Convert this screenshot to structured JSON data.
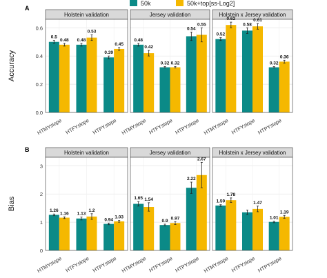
{
  "legend": {
    "position": "top",
    "entries": [
      {
        "label": "50k",
        "color": "#0b8a87"
      },
      {
        "label": "50k+top[ss-Log2]",
        "color": "#f5b800"
      }
    ]
  },
  "chart_data": [
    {
      "type": "bar",
      "panel_label": "A",
      "ylabel": "Accuracy",
      "ylim": [
        0,
        0.66
      ],
      "yticks": [
        "0.0",
        "0.2",
        "0.4",
        "0.6"
      ],
      "ytick_values": [
        0,
        0.2,
        0.4,
        0.6
      ],
      "grid": true,
      "facets": [
        {
          "title": "Holstein validation",
          "categories": [
            "HTMYslope",
            "HTFYslope",
            "HTPYslope"
          ],
          "series": [
            {
              "values": [
                0.5,
                0.48,
                0.39
              ],
              "errors": [
                0.01,
                0.01,
                0.01
              ],
              "labels": [
                "0.5",
                "0.48",
                "0.39"
              ]
            },
            {
              "values": [
                0.48,
                0.53,
                0.45
              ],
              "errors": [
                0.01,
                0.02,
                0.01
              ],
              "labels": [
                "0.48",
                "0.53",
                "0.45"
              ]
            }
          ]
        },
        {
          "title": "Jersey validation",
          "categories": [
            "HTMYslope",
            "HTFYslope",
            "HTPYslope"
          ],
          "series": [
            {
              "values": [
                0.48,
                0.32,
                0.54
              ],
              "errors": [
                0.01,
                0.005,
                0.03
              ],
              "labels": [
                "0.48",
                "0.32",
                "0.54"
              ]
            },
            {
              "values": [
                0.42,
                0.32,
                0.55
              ],
              "errors": [
                0.02,
                0.005,
                0.05
              ],
              "labels": [
                "0.42",
                "0.32",
                "0.55"
              ]
            }
          ]
        },
        {
          "title": "Holstein x Jersey validation",
          "categories": [
            "HTMYslope",
            "HTFYslope",
            "HTPYslope"
          ],
          "series": [
            {
              "values": [
                0.52,
                0.58,
                0.32
              ],
              "errors": [
                0.01,
                0.02,
                0.005
              ],
              "labels": [
                "0.52",
                "0.58",
                "0.32"
              ]
            },
            {
              "values": [
                0.62,
                0.61,
                0.36
              ],
              "errors": [
                0.02,
                0.02,
                0.01
              ],
              "labels": [
                "0.62",
                "0.61",
                "0.36"
              ]
            }
          ]
        }
      ]
    },
    {
      "type": "bar",
      "panel_label": "B",
      "ylabel": "Bias",
      "ylim": [
        0,
        3.3
      ],
      "yticks": [
        "0",
        "1",
        "2",
        "3"
      ],
      "ytick_values": [
        0,
        1,
        2,
        3
      ],
      "grid": true,
      "facets": [
        {
          "title": "Holstein validation",
          "categories": [
            "HTMYslope",
            "HTFYslope",
            "HTPYslope"
          ],
          "series": [
            {
              "values": [
                1.26,
                1.13,
                0.94
              ],
              "errors": [
                0.03,
                0.05,
                0.03
              ],
              "labels": [
                "1.26",
                "1.13",
                "0.94"
              ]
            },
            {
              "values": [
                1.16,
                1.2,
                1.03
              ],
              "errors": [
                0.03,
                0.1,
                0.03
              ],
              "labels": [
                "1.16",
                "1.2",
                "1.03"
              ]
            }
          ]
        },
        {
          "title": "Jersey validation",
          "categories": [
            "HTMYslope",
            "HTFYslope",
            "HTPYslope"
          ],
          "series": [
            {
              "values": [
                1.65,
                0.9,
                2.22
              ],
              "errors": [
                0.08,
                0.03,
                0.2
              ],
              "labels": [
                "1.65",
                "0.9",
                "2.22"
              ]
            },
            {
              "values": [
                1.54,
                0.97,
                2.67
              ],
              "errors": [
                0.15,
                0.05,
                0.45
              ],
              "labels": [
                "1.54",
                "0.97",
                "2.67"
              ]
            }
          ]
        },
        {
          "title": "Holstein x Jersey validation",
          "categories": [
            "HTMYslope",
            "HTFYslope",
            "HTPYslope"
          ],
          "series": [
            {
              "values": [
                1.59,
                1.35,
                1.01
              ],
              "errors": [
                0.03,
                0.08,
                0.03
              ],
              "labels": [
                "1.59",
                "",
                "1.01"
              ]
            },
            {
              "values": [
                1.78,
                1.47,
                1.19
              ],
              "errors": [
                0.08,
                0.1,
                0.05
              ],
              "labels": [
                "1.78",
                "1.47",
                "1.19"
              ]
            }
          ]
        }
      ]
    }
  ]
}
